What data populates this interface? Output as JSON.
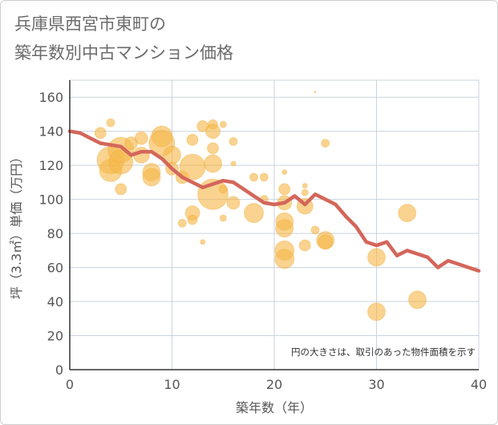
{
  "title_lines": [
    "兵庫県西宮市東町の",
    "築年数別中古マンション価格"
  ],
  "chart_data": {
    "type": "scatter",
    "xlabel": "築年数（年）",
    "ylabel": "坪（3.3㎡）単価（万円）",
    "xlim": [
      0,
      40
    ],
    "ylim": [
      0,
      170
    ],
    "xticks": [
      0,
      10,
      20,
      30,
      40
    ],
    "yticks": [
      0,
      20,
      40,
      60,
      80,
      100,
      120,
      140,
      160
    ],
    "grid": true,
    "annotation": "円の大きさは、取引のあった物件面積を示す",
    "colors": {
      "bubble": "#f5b84a",
      "line": "#d4665a",
      "grid": "#c9d3de"
    },
    "bubbles": [
      {
        "x": 3,
        "y": 139,
        "s": 7
      },
      {
        "x": 4,
        "y": 145,
        "s": 5
      },
      {
        "x": 4,
        "y": 123,
        "s": 17
      },
      {
        "x": 4,
        "y": 117,
        "s": 14
      },
      {
        "x": 5,
        "y": 129,
        "s": 16
      },
      {
        "x": 5,
        "y": 122,
        "s": 15
      },
      {
        "x": 5,
        "y": 106,
        "s": 7
      },
      {
        "x": 6,
        "y": 133,
        "s": 8
      },
      {
        "x": 7,
        "y": 136,
        "s": 8
      },
      {
        "x": 7,
        "y": 126,
        "s": 10
      },
      {
        "x": 8,
        "y": 116,
        "s": 11
      },
      {
        "x": 8,
        "y": 113,
        "s": 11
      },
      {
        "x": 9,
        "y": 137,
        "s": 13
      },
      {
        "x": 9,
        "y": 133,
        "s": 16
      },
      {
        "x": 10,
        "y": 126,
        "s": 11
      },
      {
        "x": 10,
        "y": 118,
        "s": 8
      },
      {
        "x": 11,
        "y": 113,
        "s": 8
      },
      {
        "x": 12,
        "y": 135,
        "s": 7
      },
      {
        "x": 12,
        "y": 119,
        "s": 16
      },
      {
        "x": 12,
        "y": 92,
        "s": 9
      },
      {
        "x": 12,
        "y": 88,
        "s": 6
      },
      {
        "x": 11,
        "y": 86,
        "s": 5
      },
      {
        "x": 13,
        "y": 143,
        "s": 7
      },
      {
        "x": 13,
        "y": 75,
        "s": 3
      },
      {
        "x": 14,
        "y": 144,
        "s": 6
      },
      {
        "x": 14,
        "y": 140,
        "s": 9
      },
      {
        "x": 14,
        "y": 130,
        "s": 7
      },
      {
        "x": 14,
        "y": 121,
        "s": 11
      },
      {
        "x": 14,
        "y": 103,
        "s": 19
      },
      {
        "x": 15,
        "y": 144,
        "s": 4
      },
      {
        "x": 15,
        "y": 106,
        "s": 5
      },
      {
        "x": 15,
        "y": 89,
        "s": 4
      },
      {
        "x": 16,
        "y": 134,
        "s": 5
      },
      {
        "x": 16,
        "y": 98,
        "s": 8
      },
      {
        "x": 16,
        "y": 121,
        "s": 3
      },
      {
        "x": 18,
        "y": 113,
        "s": 5
      },
      {
        "x": 18,
        "y": 92,
        "s": 12
      },
      {
        "x": 19,
        "y": 113,
        "s": 5
      },
      {
        "x": 19,
        "y": 100,
        "s": 5
      },
      {
        "x": 21,
        "y": 116,
        "s": 3
      },
      {
        "x": 21,
        "y": 106,
        "s": 7
      },
      {
        "x": 21,
        "y": 98,
        "s": 9
      },
      {
        "x": 21,
        "y": 87,
        "s": 11
      },
      {
        "x": 21,
        "y": 83,
        "s": 11
      },
      {
        "x": 21,
        "y": 70,
        "s": 12
      },
      {
        "x": 21,
        "y": 65,
        "s": 12
      },
      {
        "x": 23,
        "y": 108,
        "s": 3
      },
      {
        "x": 23,
        "y": 104,
        "s": 4
      },
      {
        "x": 23,
        "y": 96,
        "s": 10
      },
      {
        "x": 23,
        "y": 73,
        "s": 7
      },
      {
        "x": 24,
        "y": 82,
        "s": 5
      },
      {
        "x": 25,
        "y": 133,
        "s": 5
      },
      {
        "x": 25,
        "y": 76,
        "s": 11
      },
      {
        "x": 25,
        "y": 75,
        "s": 9
      },
      {
        "x": 30,
        "y": 66,
        "s": 11
      },
      {
        "x": 30,
        "y": 34,
        "s": 11
      },
      {
        "x": 33,
        "y": 92,
        "s": 11
      },
      {
        "x": 34,
        "y": 41,
        "s": 11
      },
      {
        "x": 24,
        "y": 163,
        "s": 1
      }
    ],
    "trend_line": [
      [
        0,
        140
      ],
      [
        1,
        139
      ],
      [
        2,
        136
      ],
      [
        3,
        133
      ],
      [
        4,
        132
      ],
      [
        5,
        131
      ],
      [
        6,
        126
      ],
      [
        7,
        128
      ],
      [
        8,
        128
      ],
      [
        9,
        124
      ],
      [
        10,
        118
      ],
      [
        11,
        113
      ],
      [
        12,
        110
      ],
      [
        13,
        107
      ],
      [
        14,
        109
      ],
      [
        15,
        111
      ],
      [
        16,
        110
      ],
      [
        17,
        106
      ],
      [
        18,
        102
      ],
      [
        19,
        98
      ],
      [
        20,
        97
      ],
      [
        21,
        98
      ],
      [
        22,
        102
      ],
      [
        23,
        97
      ],
      [
        24,
        103
      ],
      [
        25,
        100
      ],
      [
        26,
        97
      ],
      [
        27,
        90
      ],
      [
        28,
        84
      ],
      [
        29,
        75
      ],
      [
        30,
        73
      ],
      [
        31,
        75
      ],
      [
        32,
        67
      ],
      [
        33,
        70
      ],
      [
        34,
        68
      ],
      [
        35,
        66
      ],
      [
        36,
        60
      ],
      [
        37,
        64
      ],
      [
        38,
        62
      ],
      [
        39,
        60
      ],
      [
        40,
        58
      ]
    ]
  }
}
